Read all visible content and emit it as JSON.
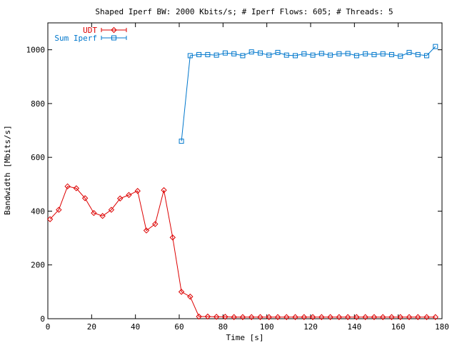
{
  "chart_data": {
    "type": "line",
    "title": "Shaped Iperf BW: 2000 Kbits/s; # Iperf Flows: 605; # Threads: 5",
    "xlabel": "Time [s]",
    "ylabel": "Bandwidth [Mbits/s]",
    "xlim": [
      0,
      180
    ],
    "ylim": [
      0,
      1100
    ],
    "xticks": [
      0,
      20,
      40,
      60,
      80,
      100,
      120,
      140,
      160,
      180
    ],
    "yticks": [
      0,
      200,
      400,
      600,
      800,
      1000
    ],
    "xtick_labels": [
      "0",
      "20",
      "40",
      "60",
      "80",
      "100",
      "120",
      "140",
      "160",
      "180"
    ],
    "ytick_labels": [
      "0",
      "200",
      "400",
      "600",
      "800",
      "1000"
    ],
    "grid": false,
    "legend_position": "top-left",
    "series": [
      {
        "name": "UDT",
        "color": "#dd0000",
        "marker": "diamond",
        "points": [
          [
            1,
            370
          ],
          [
            5,
            405
          ],
          [
            9,
            492
          ],
          [
            13,
            485
          ],
          [
            17,
            448
          ],
          [
            21,
            393
          ],
          [
            25,
            382
          ],
          [
            29,
            405
          ],
          [
            33,
            447
          ],
          [
            37,
            460
          ],
          [
            41,
            475
          ],
          [
            45,
            328
          ],
          [
            49,
            352
          ],
          [
            53,
            478
          ],
          [
            57,
            302
          ],
          [
            61,
            100
          ],
          [
            65,
            82
          ],
          [
            69,
            8
          ],
          [
            73,
            8
          ],
          [
            77,
            7
          ],
          [
            81,
            7
          ],
          [
            85,
            6
          ],
          [
            89,
            6
          ],
          [
            93,
            6
          ],
          [
            97,
            6
          ],
          [
            101,
            6
          ],
          [
            105,
            6
          ],
          [
            109,
            6
          ],
          [
            113,
            6
          ],
          [
            117,
            6
          ],
          [
            121,
            6
          ],
          [
            125,
            6
          ],
          [
            129,
            6
          ],
          [
            133,
            6
          ],
          [
            137,
            6
          ],
          [
            141,
            6
          ],
          [
            145,
            6
          ],
          [
            149,
            6
          ],
          [
            153,
            6
          ],
          [
            157,
            6
          ],
          [
            161,
            6
          ],
          [
            165,
            6
          ],
          [
            169,
            6
          ],
          [
            173,
            6
          ],
          [
            177,
            6
          ]
        ]
      },
      {
        "name": "Sum Iperf",
        "color": "#0077cc",
        "marker": "square",
        "points": [
          [
            61,
            660
          ],
          [
            65,
            978
          ],
          [
            69,
            982
          ],
          [
            73,
            982
          ],
          [
            77,
            980
          ],
          [
            81,
            988
          ],
          [
            85,
            985
          ],
          [
            89,
            978
          ],
          [
            93,
            992
          ],
          [
            97,
            988
          ],
          [
            101,
            980
          ],
          [
            105,
            990
          ],
          [
            109,
            980
          ],
          [
            113,
            978
          ],
          [
            117,
            985
          ],
          [
            121,
            980
          ],
          [
            125,
            986
          ],
          [
            129,
            980
          ],
          [
            133,
            985
          ],
          [
            137,
            986
          ],
          [
            141,
            978
          ],
          [
            145,
            985
          ],
          [
            149,
            982
          ],
          [
            153,
            985
          ],
          [
            157,
            982
          ],
          [
            161,
            976
          ],
          [
            165,
            990
          ],
          [
            169,
            982
          ],
          [
            173,
            978
          ],
          [
            177,
            1012
          ]
        ]
      }
    ]
  }
}
